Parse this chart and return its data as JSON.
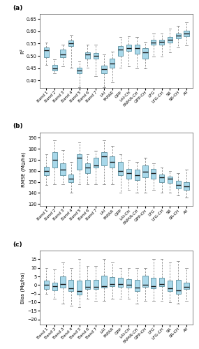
{
  "labels": [
    "Band 1",
    "Band 2",
    "Band 3",
    "Band 4",
    "Band 5",
    "Band 6",
    "Band 7",
    "LAI",
    "FAPAR",
    "GPP",
    "LAI-CH",
    "FAPAR-CH",
    "GPP-CH",
    "LFG",
    "LFG-CH",
    "SR",
    "SR-CH",
    "All"
  ],
  "panel_labels": [
    "(a)",
    "(b)",
    "(c)"
  ],
  "box_facecolor": "#a8d8ea",
  "box_edgecolor": "#5a8fa0",
  "median_color": "#1a1a1a",
  "whisker_color": "#888888",
  "cap_color": "#888888",
  "r2": {
    "ylabel": "R²",
    "ylim": [
      0.37,
      0.67
    ],
    "yticks": [
      0.4,
      0.45,
      0.5,
      0.55,
      0.6,
      0.65
    ],
    "boxes": [
      {
        "q1": 0.495,
        "median": 0.522,
        "q3": 0.535,
        "whislo": 0.462,
        "whishi": 0.555
      },
      {
        "q1": 0.44,
        "median": 0.45,
        "q3": 0.462,
        "whislo": 0.428,
        "whishi": 0.486
      },
      {
        "q1": 0.495,
        "median": 0.505,
        "q3": 0.525,
        "whislo": 0.458,
        "whishi": 0.546
      },
      {
        "q1": 0.54,
        "median": 0.55,
        "q3": 0.562,
        "whislo": 0.452,
        "whishi": 0.586
      },
      {
        "q1": 0.428,
        "median": 0.44,
        "q3": 0.452,
        "whislo": 0.374,
        "whishi": 0.478
      },
      {
        "q1": 0.49,
        "median": 0.505,
        "q3": 0.515,
        "whislo": 0.453,
        "whishi": 0.546
      },
      {
        "q1": 0.488,
        "median": 0.5,
        "q3": 0.512,
        "whislo": 0.418,
        "whishi": 0.546
      },
      {
        "q1": 0.428,
        "median": 0.445,
        "q3": 0.46,
        "whislo": 0.373,
        "whishi": 0.506
      },
      {
        "q1": 0.453,
        "median": 0.47,
        "q3": 0.49,
        "whislo": 0.393,
        "whishi": 0.516
      },
      {
        "q1": 0.5,
        "median": 0.525,
        "q3": 0.54,
        "whislo": 0.453,
        "whishi": 0.576
      },
      {
        "q1": 0.52,
        "median": 0.53,
        "q3": 0.546,
        "whislo": 0.458,
        "whishi": 0.58
      },
      {
        "q1": 0.51,
        "median": 0.53,
        "q3": 0.546,
        "whislo": 0.448,
        "whishi": 0.576
      },
      {
        "q1": 0.49,
        "median": 0.515,
        "q3": 0.53,
        "whislo": 0.448,
        "whishi": 0.556
      },
      {
        "q1": 0.545,
        "median": 0.555,
        "q3": 0.566,
        "whislo": 0.498,
        "whishi": 0.591
      },
      {
        "q1": 0.545,
        "median": 0.556,
        "q3": 0.566,
        "whislo": 0.498,
        "whishi": 0.591
      },
      {
        "q1": 0.555,
        "median": 0.566,
        "q3": 0.576,
        "whislo": 0.513,
        "whishi": 0.611
      },
      {
        "q1": 0.57,
        "median": 0.581,
        "q3": 0.591,
        "whislo": 0.533,
        "whishi": 0.621
      },
      {
        "q1": 0.58,
        "median": 0.591,
        "q3": 0.601,
        "whislo": 0.543,
        "whishi": 0.636
      }
    ]
  },
  "rmse": {
    "ylabel": "RMSE (Mg/ha)",
    "ylim": [
      128,
      195
    ],
    "yticks": [
      130,
      140,
      150,
      160,
      170,
      180,
      190
    ],
    "boxes": [
      {
        "q1": 156,
        "median": 160,
        "q3": 164,
        "whislo": 147,
        "whishi": 175
      },
      {
        "q1": 163,
        "median": 170,
        "q3": 177,
        "whislo": 148,
        "whishi": 188
      },
      {
        "q1": 156,
        "median": 161,
        "q3": 167,
        "whislo": 148,
        "whishi": 179
      },
      {
        "q1": 150,
        "median": 153,
        "q3": 157,
        "whislo": 140,
        "whishi": 168
      },
      {
        "q1": 161,
        "median": 172,
        "q3": 175,
        "whislo": 148,
        "whishi": 186
      },
      {
        "q1": 158,
        "median": 163,
        "q3": 167,
        "whislo": 148,
        "whishi": 175
      },
      {
        "q1": 163,
        "median": 165,
        "q3": 172,
        "whislo": 148,
        "whishi": 178
      },
      {
        "q1": 165,
        "median": 173,
        "q3": 177,
        "whislo": 148,
        "whishi": 188
      },
      {
        "q1": 163,
        "median": 168,
        "q3": 173,
        "whislo": 148,
        "whishi": 183
      },
      {
        "q1": 156,
        "median": 160,
        "q3": 168,
        "whislo": 140,
        "whishi": 175
      },
      {
        "q1": 153,
        "median": 158,
        "q3": 162,
        "whislo": 143,
        "whishi": 170
      },
      {
        "q1": 152,
        "median": 156,
        "q3": 161,
        "whislo": 140,
        "whishi": 168
      },
      {
        "q1": 154,
        "median": 159,
        "q3": 165,
        "whislo": 140,
        "whishi": 172
      },
      {
        "q1": 153,
        "median": 158,
        "q3": 162,
        "whislo": 143,
        "whishi": 167
      },
      {
        "q1": 150,
        "median": 154,
        "q3": 157,
        "whislo": 140,
        "whishi": 163
      },
      {
        "q1": 149,
        "median": 153,
        "q3": 155,
        "whislo": 140,
        "whishi": 160
      },
      {
        "q1": 144,
        "median": 147,
        "q3": 151,
        "whislo": 138,
        "whishi": 158
      },
      {
        "q1": 143,
        "median": 146,
        "q3": 150,
        "whislo": 136,
        "whishi": 161
      }
    ]
  },
  "bias": {
    "ylabel": "Bias (Mg/ha)",
    "ylim": [
      -23,
      20
    ],
    "yticks": [
      -20,
      -15,
      -10,
      -5,
      0,
      5,
      10,
      15
    ],
    "boxes": [
      {
        "q1": -2.5,
        "median": 0.0,
        "q3": 2.5,
        "whislo": -5,
        "whishi": 10
      },
      {
        "q1": -3.0,
        "median": -0.5,
        "q3": 1.5,
        "whislo": -8,
        "whishi": 9
      },
      {
        "q1": -1.5,
        "median": 0.5,
        "q3": 5.0,
        "whislo": -11,
        "whishi": 13
      },
      {
        "q1": -3.5,
        "median": -2.0,
        "q3": 3.0,
        "whislo": -12,
        "whishi": 10
      },
      {
        "q1": -5.5,
        "median": -3.5,
        "q3": 2.5,
        "whislo": -13,
        "whishi": 15
      },
      {
        "q1": -2.5,
        "median": -1.0,
        "q3": 3.0,
        "whislo": -8,
        "whishi": 11
      },
      {
        "q1": -2.5,
        "median": -1.0,
        "q3": 3.0,
        "whislo": -9,
        "whishi": 11
      },
      {
        "q1": -1.5,
        "median": -0.5,
        "q3": 5.5,
        "whislo": -9,
        "whishi": 15
      },
      {
        "q1": -0.5,
        "median": 0.5,
        "q3": 4.5,
        "whislo": -8,
        "whishi": 13
      },
      {
        "q1": -1.0,
        "median": 0.5,
        "q3": 4.0,
        "whislo": -8,
        "whishi": 10
      },
      {
        "q1": -1.5,
        "median": 0.0,
        "q3": 3.5,
        "whislo": -8,
        "whishi": 10
      },
      {
        "q1": -3.5,
        "median": -1.5,
        "q3": 3.0,
        "whislo": -11,
        "whishi": 10
      },
      {
        "q1": -1.0,
        "median": 0.0,
        "q3": 5.5,
        "whislo": -9,
        "whishi": 10
      },
      {
        "q1": -2.0,
        "median": -0.5,
        "q3": 4.0,
        "whislo": -9,
        "whishi": 15
      },
      {
        "q1": -0.5,
        "median": 0.5,
        "q3": 4.0,
        "whislo": -9,
        "whishi": 15
      },
      {
        "q1": -3.5,
        "median": -2.0,
        "q3": 2.5,
        "whislo": -10,
        "whishi": 13
      },
      {
        "q1": -5.0,
        "median": -3.0,
        "q3": 3.0,
        "whislo": -11,
        "whishi": 14
      },
      {
        "q1": -2.5,
        "median": -1.0,
        "q3": 1.5,
        "whislo": -9,
        "whishi": 10
      }
    ]
  }
}
